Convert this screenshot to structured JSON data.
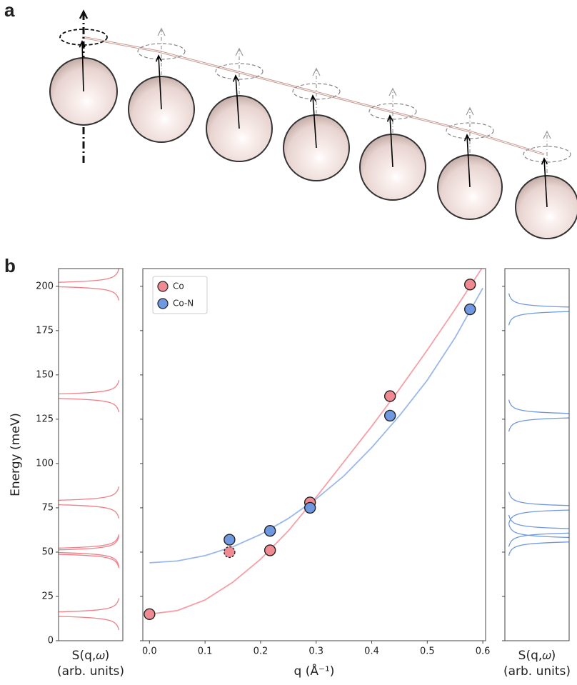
{
  "panel_labels": [
    "a",
    "b"
  ],
  "chart_data": [
    {
      "type": "spectrum",
      "xlabel": [
        "S(q,𝜔)",
        "(arb. units)"
      ],
      "ylabel": "Energy (meV)",
      "ylim": [
        0,
        210
      ],
      "yticks": [
        0,
        25,
        50,
        75,
        100,
        125,
        150,
        175,
        200
      ],
      "peaks": [
        15,
        50,
        51,
        78,
        138,
        201
      ],
      "color": "#f07f88"
    },
    {
      "type": "scatter",
      "xlabel": "q (Å⁻¹)",
      "xlim": [
        -0.012,
        0.605
      ],
      "xticks": [
        {
          "value": 0,
          "label": "0.0"
        },
        0.1,
        0.2,
        0.3,
        0.4,
        0.5,
        0.6
      ],
      "ylim": [
        0,
        210
      ],
      "yticks": [
        0,
        25,
        50,
        75,
        100,
        125,
        150,
        175,
        200
      ],
      "legend": "upper left",
      "series": [
        {
          "name": "Co",
          "color": "#f08a92",
          "x": [
            0,
            0.144,
            0.217,
            0.289,
            0.433,
            0.577
          ],
          "values": [
            15,
            50,
            51,
            78,
            138,
            201
          ],
          "dashed_index": 1
        },
        {
          "name": "Co-N",
          "color": "#6f98e0",
          "x": [
            0.144,
            0.217,
            0.289,
            0.433,
            0.577
          ],
          "values": [
            57,
            62,
            75,
            127,
            187
          ]
        }
      ],
      "fits": [
        {
          "color": "#f5a0a8",
          "x": [
            0,
            0.05,
            0.1,
            0.15,
            0.2,
            0.25,
            0.3,
            0.35,
            0.4,
            0.45,
            0.5,
            0.55,
            0.6
          ],
          "values": [
            15,
            17,
            23,
            33,
            46,
            62,
            81,
            101,
            121,
            142,
            164,
            187,
            211
          ]
        },
        {
          "color": "#9ab8ea",
          "x": [
            0,
            0.05,
            0.1,
            0.15,
            0.2,
            0.25,
            0.3,
            0.35,
            0.4,
            0.45,
            0.5,
            0.55,
            0.6
          ],
          "values": [
            44,
            45,
            48,
            53,
            60,
            69,
            80,
            93,
            109,
            127,
            147,
            171,
            199
          ]
        }
      ]
    },
    {
      "type": "spectrum",
      "xlabel": [
        "S(q,𝜔)",
        "(arb. units)"
      ],
      "ylim": [
        0,
        210
      ],
      "yticks": [
        0,
        25,
        50,
        75,
        100,
        125,
        150,
        175,
        200
      ],
      "peaks": [
        57,
        62,
        75,
        127,
        187
      ],
      "color": "#6f98e0"
    }
  ]
}
